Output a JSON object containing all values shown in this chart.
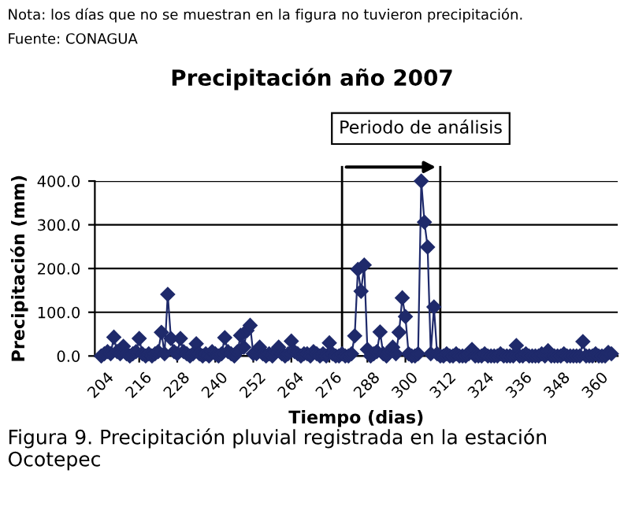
{
  "chart_data": {
    "type": "line",
    "title": "Precipitación año 2007",
    "xlabel": "Tiempo (dias)",
    "ylabel": "Precipitación (mm)",
    "annotations": [
      "Nota: los días que no se muestran en la figura no tuvieron precipitación.",
      "Fuente: CONAGUA",
      "Periodo de análisis",
      "Figura 9. Precipitación pluvial registrada en la estación Ocotepec"
    ],
    "series": [
      {
        "color": "#1f2a6b",
        "x": [
          204,
          205,
          206,
          207,
          208,
          209,
          210,
          211,
          212,
          213,
          214,
          215,
          216,
          217,
          218,
          219,
          220,
          221,
          222,
          223,
          224,
          225,
          226,
          227,
          228,
          229,
          230,
          231,
          232,
          233,
          234,
          235,
          236,
          237,
          238,
          239,
          240,
          241,
          242,
          243,
          244,
          245,
          246,
          247,
          248,
          249,
          250,
          251,
          252,
          253,
          254,
          255,
          256,
          257,
          258,
          259,
          260,
          261,
          262,
          263,
          264,
          265,
          266,
          267,
          268,
          269,
          270,
          271,
          272,
          273,
          274,
          275,
          276,
          277,
          278,
          279,
          280,
          281,
          282,
          283,
          284,
          285,
          286,
          287,
          288,
          289,
          290,
          291,
          292,
          293,
          294,
          295,
          296,
          297,
          298,
          299,
          300,
          301,
          302,
          303,
          304,
          305,
          306,
          307,
          308,
          309,
          310,
          311,
          312,
          313,
          314,
          315,
          316,
          317,
          318,
          319,
          320,
          321,
          322,
          323,
          324,
          325,
          326,
          327,
          328,
          329,
          330,
          331,
          332,
          333,
          334,
          335,
          336,
          337,
          338,
          339,
          340,
          341,
          342,
          343,
          344,
          345,
          346,
          347,
          348,
          349,
          350,
          351,
          352,
          353,
          354,
          355,
          356,
          357,
          358,
          359,
          360,
          361,
          362,
          363,
          364,
          365
        ],
        "values": [
          0,
          5,
          10,
          5,
          43,
          10,
          5,
          22,
          5,
          0,
          5,
          10,
          40,
          5,
          0,
          5,
          0,
          5,
          10,
          54,
          5,
          141,
          40,
          10,
          5,
          40,
          10,
          5,
          0,
          5,
          28,
          5,
          0,
          5,
          0,
          10,
          5,
          0,
          5,
          42,
          10,
          5,
          0,
          10,
          47,
          20,
          58,
          70,
          5,
          5,
          20,
          5,
          0,
          5,
          0,
          10,
          20,
          5,
          0,
          5,
          34,
          10,
          5,
          0,
          5,
          5,
          0,
          10,
          5,
          0,
          5,
          0,
          30,
          5,
          0,
          0,
          5,
          0,
          0,
          5,
          46,
          198,
          148,
          208,
          15,
          0,
          5,
          10,
          55,
          5,
          0,
          10,
          20,
          5,
          54,
          133,
          90,
          5,
          0,
          0,
          5,
          400,
          306,
          249,
          5,
          112,
          5,
          0,
          0,
          5,
          0,
          0,
          5,
          0,
          0,
          0,
          5,
          15,
          0,
          0,
          0,
          5,
          0,
          0,
          0,
          0,
          5,
          0,
          0,
          0,
          0,
          24,
          0,
          0,
          5,
          0,
          0,
          0,
          0,
          5,
          0,
          12,
          0,
          0,
          0,
          0,
          5,
          0,
          0,
          0,
          0,
          0,
          33,
          0,
          0,
          0,
          5,
          0,
          0,
          0,
          8,
          5
        ]
      }
    ],
    "xlim": [
      202,
      367
    ],
    "xticks": [
      204,
      216,
      228,
      240,
      252,
      264,
      276,
      288,
      300,
      312,
      324,
      336,
      348,
      360
    ],
    "ylim": [
      0,
      400
    ],
    "yticks": [
      {
        "value": 0,
        "label": "0.0"
      },
      {
        "value": 100,
        "label": "100.0"
      },
      {
        "value": 200,
        "label": "200.0"
      },
      {
        "value": 300,
        "label": "300.0"
      },
      {
        "value": 400,
        "label": "400.0"
      }
    ],
    "grid": "y",
    "marker": "diamond",
    "line_style": "solid",
    "ref_lines": [
      {
        "axis": "x",
        "value": 280,
        "color": "#000000"
      },
      {
        "axis": "x",
        "value": 311,
        "color": "#000000"
      }
    ]
  }
}
